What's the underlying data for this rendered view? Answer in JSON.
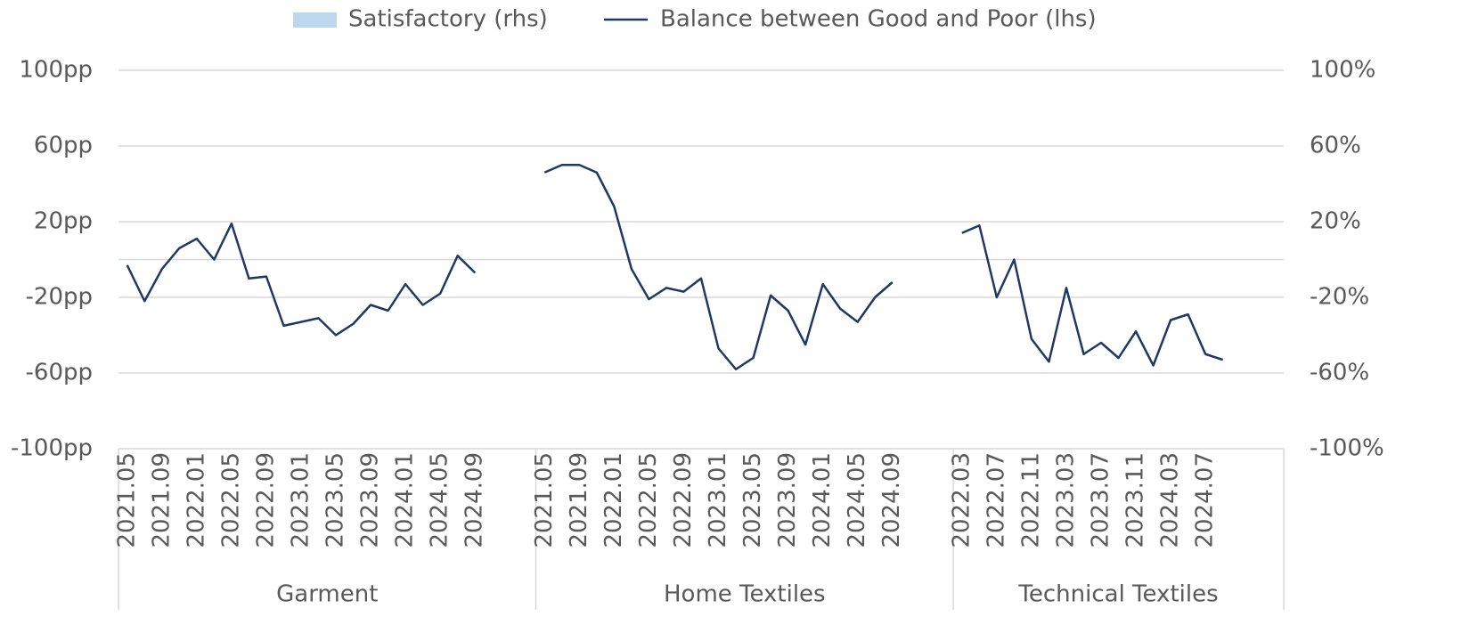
{
  "chart_data": {
    "type": "line",
    "groups": [
      {
        "label": "Garment",
        "categories": [
          "2021.05",
          null,
          "2021.09",
          null,
          "2022.01",
          null,
          "2022.05",
          null,
          "2022.09",
          null,
          "2023.01",
          null,
          "2023.05",
          null,
          "2023.09",
          null,
          "2024.01",
          null,
          "2024.05",
          null,
          "2024.09",
          null,
          null,
          null
        ]
      },
      {
        "label": "Home Textiles",
        "categories": [
          "2021.05",
          null,
          "2021.09",
          null,
          "2022.01",
          null,
          "2022.05",
          null,
          "2022.09",
          null,
          "2023.01",
          null,
          "2023.05",
          null,
          "2023.09",
          null,
          "2024.01",
          null,
          "2024.05",
          null,
          "2024.09",
          null,
          null,
          null
        ]
      },
      {
        "label": "Technical Textiles",
        "categories": [
          "2022.03",
          null,
          "2022.07",
          null,
          "2022.11",
          null,
          "2023.03",
          null,
          "2023.07",
          null,
          "2023.11",
          null,
          "2024.03",
          null,
          "2024.07",
          null,
          null,
          null,
          null
        ]
      }
    ],
    "series": [
      {
        "name": "Satisfactory (rhs)",
        "color": "#bdd7ee",
        "axis": "y2",
        "values": [
          [
            null,
            null,
            null,
            null,
            null,
            null,
            null,
            null,
            null,
            null,
            null,
            null,
            null,
            null,
            null,
            null,
            null,
            null,
            null,
            null,
            null,
            null,
            null,
            null
          ],
          [
            null,
            null,
            null,
            null,
            null,
            null,
            null,
            null,
            null,
            null,
            null,
            null,
            null,
            null,
            null,
            null,
            null,
            null,
            null,
            null,
            null,
            null,
            null,
            null
          ],
          [
            null,
            null,
            null,
            null,
            null,
            null,
            null,
            null,
            null,
            null,
            null,
            null,
            null,
            null,
            null,
            null,
            null,
            null,
            null
          ]
        ]
      },
      {
        "name": "Balance between Good and Poor (lhs)",
        "color": "#1f3864",
        "values": [
          [
            -3,
            -22,
            -5,
            6,
            11,
            0,
            19,
            -10,
            -9,
            -35,
            -33,
            -31,
            -40,
            -34,
            -24,
            -27,
            -13,
            -24,
            -18,
            2,
            -7,
            null,
            null,
            null
          ],
          [
            46,
            50,
            50,
            46,
            28,
            -5,
            -21,
            -15,
            -17,
            -10,
            -47,
            -58,
            -52,
            -19,
            -27,
            -45,
            -13,
            -26,
            -33,
            -20,
            -12,
            null,
            null,
            null
          ],
          [
            14,
            18,
            -20,
            0,
            -42,
            -54,
            -15,
            -50,
            -44,
            -52,
            -38,
            -56,
            -32,
            -29,
            -50,
            -53,
            null,
            null,
            null
          ]
        ]
      }
    ],
    "ylim": [
      -100,
      100
    ],
    "yticks": [
      {
        "value": -100,
        "label": "-100pp"
      },
      {
        "value": -60,
        "label": "-60pp"
      },
      {
        "value": -20,
        "label": "-20pp"
      },
      {
        "value": 20,
        "label": "20pp"
      },
      {
        "value": 60,
        "label": "60pp"
      },
      {
        "value": 100,
        "label": "100pp"
      }
    ],
    "y2lim": [
      -100,
      100
    ],
    "y2ticks": [
      {
        "value": -100,
        "label": "-100%"
      },
      {
        "value": -60,
        "label": "-60%"
      },
      {
        "value": -20,
        "label": "-20%"
      },
      {
        "value": 20,
        "label": "20%"
      },
      {
        "value": 60,
        "label": "60%"
      },
      {
        "value": 100,
        "label": "100%"
      }
    ],
    "grid": true,
    "legend": "top"
  }
}
